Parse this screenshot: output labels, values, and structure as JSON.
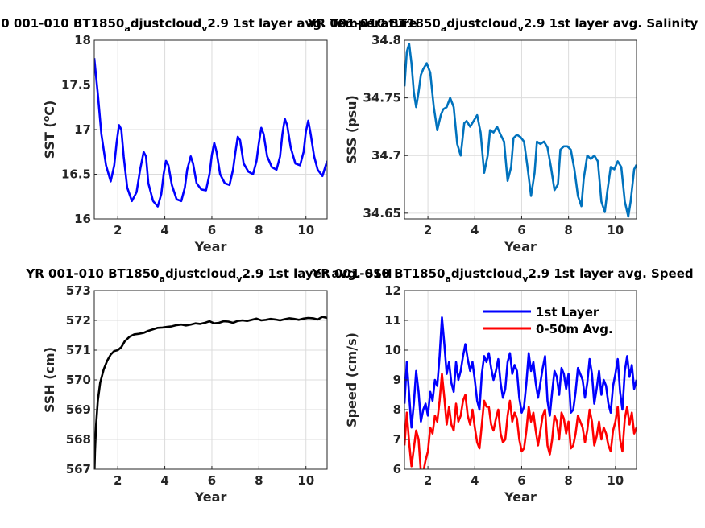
{
  "chart_data": [
    {
      "id": "sst",
      "type": "line",
      "title": {
        "parts": [
          [
            "0 001-010 BT1850",
            ""
          ],
          [
            "a",
            "sub"
          ],
          [
            "djustcloud",
            ""
          ],
          [
            "v",
            "sub"
          ],
          [
            "2.9 1st layer avg. Temperature",
            ""
          ]
        ]
      },
      "xlabel": "Year",
      "ylabel": {
        "parts": [
          [
            "SST (",
            ""
          ],
          [
            "o",
            "sup"
          ],
          [
            "C)",
            ""
          ]
        ]
      },
      "xlim": [
        1,
        10.9
      ],
      "ylim": [
        16,
        18
      ],
      "xticks": [
        2,
        4,
        6,
        8,
        10
      ],
      "yticks": [
        16,
        16.5,
        17,
        17.5,
        18
      ],
      "ytick_labels": [
        "16",
        "16.5",
        "17",
        "17.5",
        "18"
      ],
      "series": [
        {
          "color": "#0000ff",
          "x": [
            1.0,
            1.15,
            1.3,
            1.5,
            1.7,
            1.85,
            1.95,
            2.05,
            2.15,
            2.25,
            2.4,
            2.6,
            2.8,
            2.95,
            3.1,
            3.2,
            3.3,
            3.5,
            3.7,
            3.85,
            3.95,
            4.05,
            4.15,
            4.3,
            4.5,
            4.7,
            4.85,
            4.95,
            5.1,
            5.2,
            5.35,
            5.55,
            5.75,
            5.9,
            6.0,
            6.1,
            6.2,
            6.35,
            6.55,
            6.75,
            6.9,
            7.0,
            7.1,
            7.2,
            7.35,
            7.55,
            7.75,
            7.9,
            8.0,
            8.1,
            8.2,
            8.35,
            8.55,
            8.75,
            8.9,
            9.0,
            9.1,
            9.2,
            9.35,
            9.55,
            9.75,
            9.9,
            10.0,
            10.1,
            10.2,
            10.35,
            10.5,
            10.7,
            10.9
          ],
          "y": [
            17.8,
            17.4,
            16.95,
            16.6,
            16.42,
            16.6,
            16.85,
            17.05,
            17.0,
            16.7,
            16.35,
            16.2,
            16.3,
            16.55,
            16.75,
            16.7,
            16.4,
            16.2,
            16.14,
            16.28,
            16.5,
            16.65,
            16.6,
            16.38,
            16.22,
            16.2,
            16.35,
            16.55,
            16.7,
            16.62,
            16.4,
            16.33,
            16.32,
            16.5,
            16.72,
            16.85,
            16.75,
            16.5,
            16.4,
            16.38,
            16.55,
            16.75,
            16.92,
            16.88,
            16.62,
            16.53,
            16.5,
            16.65,
            16.85,
            17.02,
            16.95,
            16.7,
            16.58,
            16.55,
            16.7,
            16.95,
            17.12,
            17.05,
            16.8,
            16.62,
            16.6,
            16.75,
            16.98,
            17.1,
            16.95,
            16.7,
            16.55,
            16.48,
            16.65
          ]
        }
      ]
    },
    {
      "id": "sss",
      "type": "line",
      "title": {
        "parts": [
          [
            "YR 001-010 BT1850",
            ""
          ],
          [
            "a",
            "sub"
          ],
          [
            "djustcloud",
            ""
          ],
          [
            "v",
            "sub"
          ],
          [
            "2.9 1st layer avg. Salinity",
            ""
          ]
        ]
      },
      "xlabel": "Year",
      "ylabel": {
        "parts": [
          [
            "SSS (psu)",
            ""
          ]
        ]
      },
      "xlim": [
        1,
        10.9
      ],
      "ylim": [
        34.645,
        34.8
      ],
      "xticks": [
        2,
        4,
        6,
        8,
        10
      ],
      "yticks": [
        34.65,
        34.7,
        34.75,
        34.8
      ],
      "ytick_labels": [
        "34.65",
        "34.7",
        "34.75",
        "34.8"
      ],
      "series": [
        {
          "color": "#0072bd",
          "x": [
            1.0,
            1.1,
            1.2,
            1.3,
            1.4,
            1.5,
            1.6,
            1.7,
            1.8,
            1.95,
            2.1,
            2.25,
            2.4,
            2.55,
            2.65,
            2.8,
            2.95,
            3.1,
            3.25,
            3.4,
            3.55,
            3.65,
            3.8,
            3.95,
            4.1,
            4.25,
            4.4,
            4.55,
            4.65,
            4.8,
            4.95,
            5.1,
            5.25,
            5.4,
            5.55,
            5.65,
            5.8,
            5.95,
            6.1,
            6.25,
            6.4,
            6.55,
            6.65,
            6.8,
            6.95,
            7.1,
            7.25,
            7.4,
            7.55,
            7.65,
            7.8,
            7.95,
            8.1,
            8.25,
            8.4,
            8.55,
            8.65,
            8.8,
            8.95,
            9.1,
            9.25,
            9.4,
            9.55,
            9.65,
            9.8,
            9.95,
            10.1,
            10.25,
            10.4,
            10.55,
            10.65,
            10.8,
            10.9
          ],
          "y": [
            34.76,
            34.79,
            34.797,
            34.78,
            34.755,
            34.742,
            34.755,
            34.77,
            34.775,
            34.78,
            34.772,
            34.742,
            34.722,
            34.735,
            34.74,
            34.742,
            34.75,
            34.742,
            34.71,
            34.7,
            34.728,
            34.73,
            34.725,
            34.73,
            34.735,
            34.72,
            34.685,
            34.7,
            34.722,
            34.72,
            34.725,
            34.718,
            34.712,
            34.678,
            34.69,
            34.715,
            34.718,
            34.716,
            34.712,
            34.69,
            34.665,
            34.685,
            34.712,
            34.71,
            34.712,
            34.707,
            34.69,
            34.67,
            34.675,
            34.705,
            34.708,
            34.708,
            34.705,
            34.688,
            34.665,
            34.656,
            34.68,
            34.7,
            34.697,
            34.7,
            34.695,
            34.66,
            34.651,
            34.668,
            34.69,
            34.688,
            34.695,
            34.69,
            34.66,
            34.647,
            34.66,
            34.688,
            34.692
          ]
        }
      ]
    },
    {
      "id": "ssh",
      "type": "line",
      "title": {
        "parts": [
          [
            "YR 001-010 BT1850",
            ""
          ],
          [
            "a",
            "sub"
          ],
          [
            "djustcloud",
            ""
          ],
          [
            "v",
            "sub"
          ],
          [
            "2.9 1st layer avg. SSH",
            ""
          ]
        ]
      },
      "xlabel": "Year",
      "ylabel": {
        "parts": [
          [
            "SSH (cm)",
            ""
          ]
        ]
      },
      "xlim": [
        1,
        10.9
      ],
      "ylim": [
        567,
        573
      ],
      "xticks": [
        2,
        4,
        6,
        8,
        10
      ],
      "yticks": [
        567,
        568,
        569,
        570,
        571,
        572,
        573
      ],
      "ytick_labels": [
        "567",
        "568",
        "569",
        "570",
        "571",
        "572",
        "573"
      ],
      "series": [
        {
          "color": "#000000",
          "x": [
            1.0,
            1.03,
            1.08,
            1.15,
            1.25,
            1.4,
            1.55,
            1.7,
            1.85,
            2.0,
            2.15,
            2.3,
            2.5,
            2.7,
            2.9,
            3.1,
            3.3,
            3.5,
            3.7,
            3.9,
            4.1,
            4.3,
            4.5,
            4.7,
            4.9,
            5.1,
            5.3,
            5.5,
            5.7,
            5.9,
            6.1,
            6.3,
            6.5,
            6.7,
            6.9,
            7.1,
            7.3,
            7.5,
            7.7,
            7.9,
            8.1,
            8.3,
            8.5,
            8.7,
            8.9,
            9.1,
            9.3,
            9.5,
            9.7,
            9.9,
            10.1,
            10.3,
            10.5,
            10.7,
            10.9
          ],
          "y": [
            566.7,
            567.6,
            568.5,
            569.3,
            569.9,
            570.35,
            570.65,
            570.85,
            570.97,
            571.0,
            571.1,
            571.3,
            571.45,
            571.53,
            571.55,
            571.58,
            571.65,
            571.7,
            571.75,
            571.76,
            571.78,
            571.8,
            571.84,
            571.86,
            571.83,
            571.86,
            571.9,
            571.88,
            571.92,
            571.97,
            571.9,
            571.92,
            571.97,
            571.96,
            571.92,
            571.98,
            572.0,
            571.98,
            572.02,
            572.06,
            572.0,
            572.02,
            572.05,
            572.03,
            572.0,
            572.04,
            572.07,
            572.05,
            572.02,
            572.06,
            572.08,
            572.07,
            572.03,
            572.12,
            572.08
          ]
        }
      ]
    },
    {
      "id": "speed",
      "type": "line",
      "title": {
        "parts": [
          [
            "YR 001-010 BT1850",
            ""
          ],
          [
            "a",
            "sub"
          ],
          [
            "djustcloud",
            ""
          ],
          [
            "v",
            "sub"
          ],
          [
            "2.9 1st layer avg. Speed",
            ""
          ]
        ]
      },
      "xlabel": "Year",
      "ylabel": {
        "parts": [
          [
            "Speed (cm/s)",
            ""
          ]
        ]
      },
      "xlim": [
        1,
        10.9
      ],
      "ylim": [
        6,
        12
      ],
      "xticks": [
        2,
        4,
        6,
        8,
        10
      ],
      "yticks": [
        6,
        7,
        8,
        9,
        10,
        11,
        12
      ],
      "ytick_labels": [
        "6",
        "7",
        "8",
        "9",
        "10",
        "11",
        "12"
      ],
      "legend": {
        "position": "top-right"
      },
      "series": [
        {
          "name": "1st Layer",
          "color": "#0000ff",
          "x": [
            1.0,
            1.1,
            1.2,
            1.3,
            1.4,
            1.5,
            1.6,
            1.7,
            1.8,
            1.9,
            2.0,
            2.1,
            2.2,
            2.3,
            2.4,
            2.5,
            2.6,
            2.7,
            2.8,
            2.9,
            3.0,
            3.1,
            3.2,
            3.3,
            3.4,
            3.5,
            3.6,
            3.7,
            3.8,
            3.9,
            4.0,
            4.1,
            4.2,
            4.3,
            4.4,
            4.5,
            4.6,
            4.7,
            4.8,
            4.9,
            5.0,
            5.1,
            5.2,
            5.3,
            5.4,
            5.5,
            5.6,
            5.7,
            5.8,
            5.9,
            6.0,
            6.1,
            6.2,
            6.3,
            6.4,
            6.5,
            6.6,
            6.7,
            6.8,
            6.9,
            7.0,
            7.1,
            7.2,
            7.3,
            7.4,
            7.5,
            7.6,
            7.7,
            7.8,
            7.9,
            8.0,
            8.1,
            8.2,
            8.3,
            8.4,
            8.5,
            8.6,
            8.7,
            8.8,
            8.9,
            9.0,
            9.1,
            9.2,
            9.3,
            9.4,
            9.5,
            9.6,
            9.7,
            9.8,
            9.9,
            10.0,
            10.1,
            10.2,
            10.3,
            10.4,
            10.5,
            10.6,
            10.7,
            10.8,
            10.9
          ],
          "y": [
            8.2,
            9.6,
            8.5,
            7.4,
            8.2,
            9.3,
            8.6,
            7.6,
            8.0,
            8.2,
            7.8,
            8.6,
            8.3,
            9.0,
            8.8,
            9.8,
            11.1,
            10.2,
            9.2,
            9.6,
            8.9,
            8.6,
            9.6,
            9.0,
            9.3,
            9.8,
            10.2,
            9.7,
            9.3,
            9.6,
            9.0,
            8.3,
            8.0,
            9.2,
            9.8,
            9.6,
            9.9,
            9.4,
            9.0,
            9.3,
            9.7,
            8.9,
            8.4,
            8.7,
            9.6,
            9.9,
            9.2,
            9.5,
            9.3,
            8.4,
            7.9,
            8.1,
            8.9,
            9.9,
            9.3,
            9.6,
            8.9,
            8.4,
            8.9,
            9.4,
            9.8,
            8.3,
            7.8,
            8.6,
            9.3,
            9.1,
            8.5,
            9.4,
            9.2,
            8.7,
            9.2,
            7.9,
            8.0,
            8.6,
            9.4,
            9.2,
            9.0,
            8.4,
            8.9,
            9.7,
            9.2,
            8.2,
            8.7,
            9.3,
            8.5,
            9.0,
            8.8,
            8.2,
            7.9,
            8.8,
            9.2,
            9.7,
            8.6,
            8.0,
            9.3,
            9.8,
            9.1,
            9.5,
            8.7,
            9.0
          ]
        },
        {
          "name": "0-50m Avg.",
          "color": "#ff0000",
          "x": [
            1.0,
            1.1,
            1.2,
            1.3,
            1.4,
            1.5,
            1.6,
            1.7,
            1.8,
            1.9,
            2.0,
            2.1,
            2.2,
            2.3,
            2.4,
            2.5,
            2.6,
            2.7,
            2.8,
            2.9,
            3.0,
            3.1,
            3.2,
            3.3,
            3.4,
            3.5,
            3.6,
            3.7,
            3.8,
            3.9,
            4.0,
            4.1,
            4.2,
            4.3,
            4.4,
            4.5,
            4.6,
            4.7,
            4.8,
            4.9,
            5.0,
            5.1,
            5.2,
            5.3,
            5.4,
            5.5,
            5.6,
            5.7,
            5.8,
            5.9,
            6.0,
            6.1,
            6.2,
            6.3,
            6.4,
            6.5,
            6.6,
            6.7,
            6.8,
            6.9,
            7.0,
            7.1,
            7.2,
            7.3,
            7.4,
            7.5,
            7.6,
            7.7,
            7.8,
            7.9,
            8.0,
            8.1,
            8.2,
            8.3,
            8.4,
            8.5,
            8.6,
            8.7,
            8.8,
            8.9,
            9.0,
            9.1,
            9.2,
            9.3,
            9.4,
            9.5,
            9.6,
            9.7,
            9.8,
            9.9,
            10.0,
            10.1,
            10.2,
            10.3,
            10.4,
            10.5,
            10.6,
            10.7,
            10.8,
            10.9
          ],
          "y": [
            6.8,
            7.9,
            6.9,
            6.1,
            6.7,
            7.3,
            7.0,
            5.9,
            5.9,
            6.3,
            6.6,
            7.4,
            7.2,
            7.8,
            7.6,
            8.3,
            9.2,
            8.4,
            7.5,
            8.1,
            7.5,
            7.3,
            8.2,
            7.6,
            7.8,
            8.3,
            8.5,
            7.8,
            7.5,
            8.0,
            7.4,
            6.9,
            6.7,
            7.5,
            8.3,
            8.1,
            8.1,
            7.5,
            7.3,
            7.7,
            8.0,
            7.2,
            6.9,
            7.0,
            7.8,
            8.3,
            7.6,
            7.9,
            7.7,
            7.0,
            6.6,
            6.7,
            7.3,
            8.1,
            7.6,
            7.9,
            7.3,
            6.8,
            7.3,
            7.8,
            8.0,
            6.8,
            6.5,
            7.0,
            7.8,
            7.6,
            7.0,
            7.9,
            7.7,
            7.2,
            7.6,
            6.7,
            6.8,
            7.2,
            7.8,
            7.6,
            7.4,
            6.9,
            7.3,
            8.0,
            7.6,
            6.8,
            7.1,
            7.6,
            7.0,
            7.4,
            7.2,
            6.8,
            6.6,
            7.3,
            7.6,
            8.1,
            7.0,
            6.6,
            7.7,
            8.1,
            7.5,
            7.9,
            7.2,
            7.4
          ]
        }
      ]
    }
  ]
}
